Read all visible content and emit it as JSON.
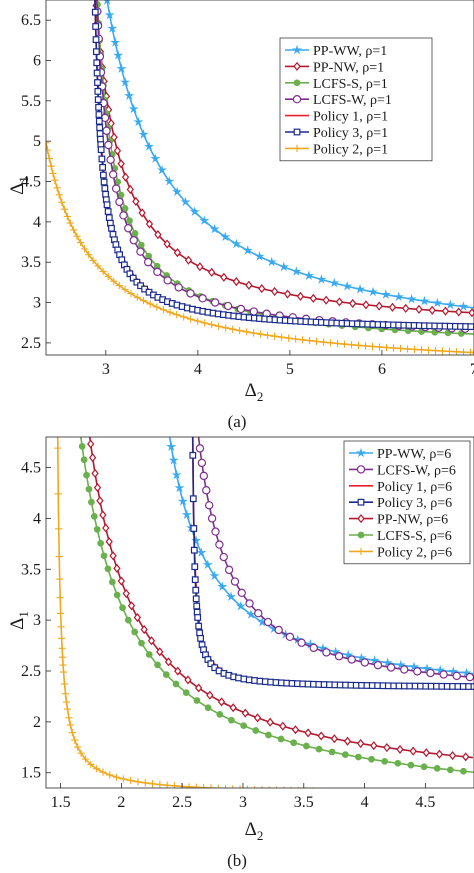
{
  "chart_data": [
    {
      "type": "line",
      "panel_label": "(a)",
      "xlabel": "Δ",
      "xlabel_sub": "2",
      "ylabel": "Δ",
      "ylabel_sub": "1",
      "xlim": [
        2.35,
        7.0
      ],
      "ylim": [
        2.35,
        6.75
      ],
      "xticks": [
        3,
        4,
        5,
        6,
        7
      ],
      "xtick_labels": [
        "3",
        "4",
        "5",
        "6",
        "7"
      ],
      "yticks": [
        2.5,
        3,
        3.5,
        4,
        4.5,
        5,
        5.5,
        6,
        6.5
      ],
      "ytick_labels": [
        "2.5",
        "3",
        "3.5",
        "4",
        "4.5",
        "5",
        "5.5",
        "6",
        "6.5"
      ],
      "grid": false,
      "legend_position": "top-right",
      "series": [
        {
          "name": "PP-WW, ρ=1",
          "color": "#3aaaf0",
          "marker": "star",
          "curve": {
            "form": "hyperbola",
            "a": 2.3,
            "b": 2.35,
            "c": 2.95
          }
        },
        {
          "name": "PP-NW, ρ=1",
          "color": "#b5172e",
          "marker": "diamond",
          "curve": {
            "form": "hyperbola",
            "a": 2.6,
            "b": 2.6,
            "c": 1.2
          }
        },
        {
          "name": "LCFS-S, ρ=1",
          "color": "#6ab04c",
          "marker": "circle-filled",
          "curve": {
            "form": "hyperbola",
            "a": 2.4,
            "b": 2.7,
            "c": 0.9
          }
        },
        {
          "name": "LCFS-W, ρ=1",
          "color": "#7e2f8e",
          "marker": "circle",
          "curve": {
            "form": "hyperbola",
            "a": 2.5,
            "b": 2.73,
            "c": 0.73
          }
        },
        {
          "name": "Policy 1, ρ=1",
          "color": "#e8202a",
          "marker": "none",
          "curve": {
            "form": "hyperbola",
            "a": 2.6,
            "b": 2.79,
            "c": 0.38
          }
        },
        {
          "name": "Policy 3, ρ=1",
          "color": "#1a2b8c",
          "marker": "square",
          "curve": {
            "form": "hyperbola",
            "a": 2.62,
            "b": 2.8,
            "c": 0.34
          }
        },
        {
          "name": "Policy 2, ρ=1",
          "color": "#f0a81c",
          "marker": "plus",
          "curve": {
            "form": "hyperbola",
            "a": 2.1,
            "b": 1.85,
            "c": 1.44
          }
        }
      ]
    },
    {
      "type": "line",
      "panel_label": "(b)",
      "xlabel": "Δ",
      "xlabel_sub": "2",
      "ylabel": "Δ",
      "ylabel_sub": "1",
      "xlim": [
        1.38,
        4.9
      ],
      "ylim": [
        1.35,
        4.8
      ],
      "xticks": [
        1.5,
        2,
        2.5,
        3,
        3.5,
        4,
        4.5
      ],
      "xtick_labels": [
        "1.5",
        "2",
        "2.5",
        "3",
        "3.5",
        "4",
        "4.5"
      ],
      "yticks": [
        1.5,
        2,
        2.5,
        3,
        3.5,
        4,
        4.5
      ],
      "ytick_labels": [
        "1.5",
        "2",
        "2.5",
        "3",
        "3.5",
        "4",
        "4.5"
      ],
      "grid": false,
      "legend_position": "top-right",
      "series": [
        {
          "name": "PP-WW, ρ=6",
          "color": "#3aaaf0",
          "marker": "star",
          "curve": {
            "form": "hyperbola",
            "a": 2.15,
            "b": 2.05,
            "c": 0.92
          }
        },
        {
          "name": "LCFS-W, ρ=6",
          "color": "#7e2f8e",
          "marker": "circle",
          "curve": {
            "form": "hyperbola",
            "a": 2.17,
            "b": 2.38,
            "c": 0.67
          }
        },
        {
          "name": "Policy 1, ρ=6",
          "color": "#e8202a",
          "marker": "none",
          "curve": {
            "form": "hyperbola",
            "a": 2.32,
            "b": 2.565,
            "c": 0.05
          }
        },
        {
          "name": "Policy 3, ρ=6",
          "color": "#1a2b8c",
          "marker": "square",
          "curve": {
            "form": "hyperbola",
            "a": 2.33,
            "b": 2.57,
            "c": 0.04
          }
        },
        {
          "name": "PP-NW, ρ=6",
          "color": "#b5172e",
          "marker": "diamond",
          "curve": {
            "form": "hyperbola",
            "a": 1.26,
            "b": 1.35,
            "c": 1.38
          }
        },
        {
          "name": "LCFS-S, ρ=6",
          "color": "#6ab04c",
          "marker": "circle-filled",
          "curve": {
            "form": "hyperbola",
            "a": 1.08,
            "b": 1.25,
            "c": 1.55
          }
        },
        {
          "name": "Policy 2, ρ=6",
          "color": "#f0a81c",
          "marker": "plus",
          "curve": {
            "form": "hyperbola",
            "a": 1.28,
            "b": 1.45,
            "c": 0.09
          }
        }
      ]
    }
  ]
}
